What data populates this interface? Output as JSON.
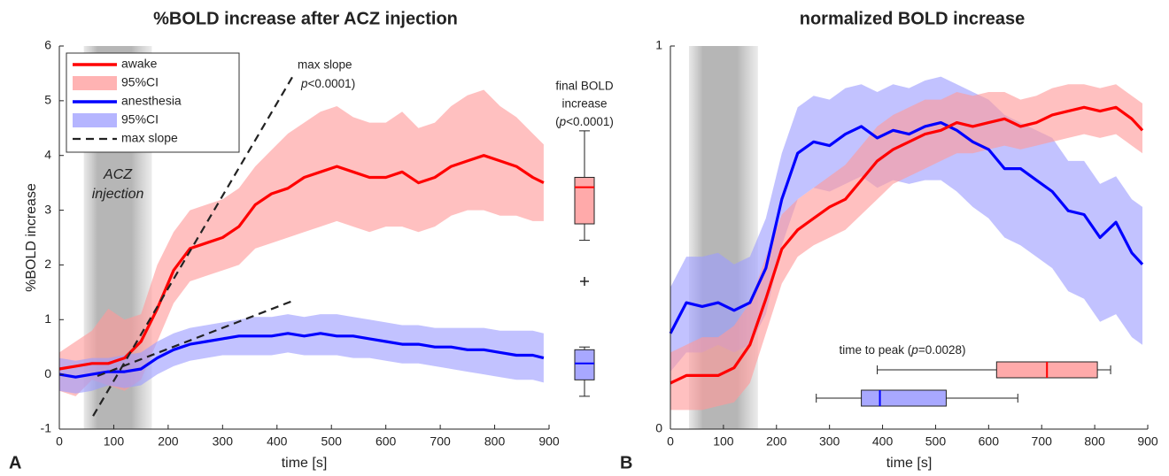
{
  "chart_data": [
    {
      "type": "line",
      "title": "%BOLD increase after ACZ injection",
      "xlabel": "time [s]",
      "ylabel": "%BOLD increase",
      "panel_label": "A",
      "xlim": [
        0,
        900
      ],
      "ylim": [
        -1,
        6
      ],
      "xticks": [
        0,
        100,
        200,
        300,
        400,
        500,
        600,
        700,
        800,
        900
      ],
      "yticks": [
        -1,
        0,
        1,
        2,
        3,
        4,
        5,
        6
      ],
      "shade": [
        45,
        170
      ],
      "shade_label": [
        "ACZ",
        "injection"
      ],
      "x": [
        0,
        30,
        60,
        90,
        120,
        150,
        180,
        210,
        240,
        270,
        300,
        330,
        360,
        390,
        420,
        450,
        480,
        510,
        540,
        570,
        600,
        630,
        660,
        690,
        720,
        750,
        780,
        810,
        840,
        870,
        890
      ],
      "series": [
        {
          "name": "awake",
          "kind": "line",
          "color": "#ff0000",
          "values": [
            0.1,
            0.15,
            0.2,
            0.2,
            0.3,
            0.6,
            1.2,
            1.9,
            2.3,
            2.4,
            2.5,
            2.7,
            3.1,
            3.3,
            3.4,
            3.6,
            3.7,
            3.8,
            3.7,
            3.6,
            3.6,
            3.7,
            3.5,
            3.6,
            3.8,
            3.9,
            4.0,
            3.9,
            3.8,
            3.6,
            3.5
          ]
        },
        {
          "name": "95%CI",
          "kind": "band",
          "color": "#ff9a9a",
          "lower": [
            -0.3,
            -0.4,
            -0.1,
            -0.2,
            -0.3,
            -0.1,
            0.6,
            1.3,
            1.7,
            1.8,
            1.9,
            2.0,
            2.3,
            2.4,
            2.5,
            2.6,
            2.7,
            2.8,
            2.7,
            2.6,
            2.7,
            2.7,
            2.6,
            2.7,
            2.9,
            3.0,
            3.0,
            2.9,
            2.9,
            2.8,
            2.8
          ],
          "upper": [
            0.4,
            0.6,
            0.8,
            1.2,
            1.0,
            1.1,
            2.0,
            2.6,
            3.0,
            3.1,
            3.2,
            3.4,
            3.8,
            4.1,
            4.4,
            4.6,
            4.8,
            4.9,
            4.7,
            4.6,
            4.6,
            4.8,
            4.5,
            4.6,
            4.9,
            5.1,
            5.2,
            4.9,
            4.7,
            4.4,
            4.2
          ]
        },
        {
          "name": "anesthesia",
          "kind": "line",
          "color": "#0000ff",
          "values": [
            0,
            -0.05,
            0,
            0.05,
            0.05,
            0.1,
            0.3,
            0.45,
            0.55,
            0.6,
            0.65,
            0.7,
            0.7,
            0.7,
            0.75,
            0.7,
            0.75,
            0.7,
            0.7,
            0.65,
            0.6,
            0.55,
            0.55,
            0.5,
            0.5,
            0.45,
            0.45,
            0.4,
            0.35,
            0.35,
            0.3
          ]
        },
        {
          "name": "95%CI",
          "kind": "band",
          "color": "#9c9cff",
          "lower": [
            -0.3,
            -0.35,
            -0.3,
            -0.2,
            -0.25,
            -0.2,
            0,
            0.15,
            0.25,
            0.3,
            0.35,
            0.35,
            0.35,
            0.35,
            0.4,
            0.35,
            0.35,
            0.35,
            0.3,
            0.3,
            0.25,
            0.2,
            0.2,
            0.15,
            0.1,
            0.05,
            0,
            -0.05,
            -0.1,
            -0.1,
            -0.15
          ],
          "upper": [
            0.3,
            0.25,
            0.3,
            0.3,
            0.35,
            0.4,
            0.6,
            0.75,
            0.85,
            0.9,
            0.95,
            1.0,
            1.05,
            1.05,
            1.1,
            1.05,
            1.1,
            1.1,
            1.05,
            1.0,
            0.95,
            0.9,
            0.9,
            0.85,
            0.85,
            0.85,
            0.85,
            0.8,
            0.8,
            0.8,
            0.75
          ]
        },
        {
          "name": "max slope",
          "kind": "dashed",
          "color": "#222222",
          "lines": [
            {
              "x": [
                62,
                428
              ],
              "values": [
                -0.76,
                5.43
              ]
            },
            {
              "x": [
                70,
                428
              ],
              "values": [
                -0.03,
                1.34
              ]
            }
          ]
        }
      ],
      "slope_note": [
        "max slope",
        "p",
        "<0.0001)"
      ],
      "boxplots": {
        "label_lines": [
          "final BOLD",
          "increase"
        ],
        "label_p": [
          "(",
          "p",
          "<0.0001)"
        ],
        "boxes": [
          {
            "color": "#ff0000",
            "fill": "#ffaaaa",
            "whislo": 2.45,
            "q1": 2.75,
            "med": 3.42,
            "q3": 3.6,
            "whishi": 4.45,
            "fliers": [
              1.7
            ]
          },
          {
            "color": "#0000ff",
            "fill": "#a8a8ff",
            "whislo": -0.4,
            "q1": -0.1,
            "med": 0.2,
            "q3": 0.45,
            "whishi": 0.5,
            "fliers": []
          }
        ]
      }
    },
    {
      "type": "line",
      "title": "normalized BOLD increase",
      "xlabel": "time [s]",
      "panel_label": "B",
      "xlim": [
        0,
        900
      ],
      "ylim": [
        0,
        1
      ],
      "xticks": [
        0,
        100,
        200,
        300,
        400,
        500,
        600,
        700,
        800,
        900
      ],
      "yticks": [
        0,
        1
      ],
      "shade": [
        35,
        165
      ],
      "x": [
        0,
        30,
        60,
        90,
        120,
        150,
        180,
        210,
        240,
        270,
        300,
        330,
        360,
        390,
        420,
        450,
        480,
        510,
        540,
        570,
        600,
        630,
        660,
        690,
        720,
        750,
        780,
        810,
        840,
        870,
        890
      ],
      "series": [
        {
          "kind": "band",
          "color": "#9c9cff",
          "lower": [
            0.15,
            0.2,
            0.2,
            0.22,
            0.2,
            0.22,
            0.3,
            0.48,
            0.6,
            0.63,
            0.62,
            0.64,
            0.66,
            0.63,
            0.65,
            0.64,
            0.65,
            0.65,
            0.62,
            0.58,
            0.55,
            0.5,
            0.48,
            0.45,
            0.42,
            0.36,
            0.34,
            0.28,
            0.3,
            0.24,
            0.22
          ],
          "upper": [
            0.37,
            0.45,
            0.45,
            0.46,
            0.43,
            0.45,
            0.55,
            0.72,
            0.84,
            0.87,
            0.86,
            0.89,
            0.9,
            0.88,
            0.9,
            0.89,
            0.91,
            0.92,
            0.9,
            0.88,
            0.86,
            0.82,
            0.8,
            0.78,
            0.76,
            0.7,
            0.7,
            0.64,
            0.66,
            0.6,
            0.58
          ]
        },
        {
          "kind": "band",
          "color": "#ff9a9a",
          "lower": [
            0.05,
            0.05,
            0.05,
            0.06,
            0.07,
            0.12,
            0.25,
            0.38,
            0.45,
            0.48,
            0.5,
            0.52,
            0.56,
            0.6,
            0.64,
            0.66,
            0.68,
            0.7,
            0.72,
            0.72,
            0.73,
            0.74,
            0.73,
            0.74,
            0.75,
            0.76,
            0.77,
            0.76,
            0.77,
            0.74,
            0.72
          ],
          "upper": [
            0.2,
            0.22,
            0.24,
            0.24,
            0.27,
            0.33,
            0.45,
            0.56,
            0.6,
            0.63,
            0.66,
            0.69,
            0.74,
            0.79,
            0.82,
            0.84,
            0.86,
            0.86,
            0.88,
            0.87,
            0.88,
            0.88,
            0.86,
            0.87,
            0.89,
            0.9,
            0.9,
            0.89,
            0.9,
            0.87,
            0.85
          ]
        },
        {
          "kind": "line",
          "color": "#0000ff",
          "values": [
            0.25,
            0.33,
            0.32,
            0.33,
            0.31,
            0.33,
            0.42,
            0.6,
            0.72,
            0.75,
            0.74,
            0.77,
            0.79,
            0.76,
            0.78,
            0.77,
            0.79,
            0.8,
            0.78,
            0.75,
            0.73,
            0.68,
            0.68,
            0.65,
            0.62,
            0.57,
            0.56,
            0.5,
            0.54,
            0.46,
            0.43
          ]
        },
        {
          "kind": "line",
          "color": "#ff0000",
          "values": [
            0.12,
            0.14,
            0.14,
            0.14,
            0.16,
            0.22,
            0.34,
            0.47,
            0.52,
            0.55,
            0.58,
            0.6,
            0.65,
            0.7,
            0.73,
            0.75,
            0.77,
            0.78,
            0.8,
            0.79,
            0.8,
            0.81,
            0.79,
            0.8,
            0.82,
            0.83,
            0.84,
            0.83,
            0.84,
            0.81,
            0.78
          ]
        }
      ],
      "peak_boxes": {
        "label": [
          "time to peak (",
          "p",
          "=0.0028)"
        ],
        "boxes": [
          {
            "color": "#ff0000",
            "fill": "#ffaaaa",
            "whislo": 390,
            "q1": 615,
            "med": 710,
            "q3": 805,
            "whishi": 830
          },
          {
            "color": "#0000ff",
            "fill": "#a8a8ff",
            "whislo": 275,
            "q1": 360,
            "med": 395,
            "q3": 520,
            "whishi": 655
          }
        ]
      }
    }
  ]
}
